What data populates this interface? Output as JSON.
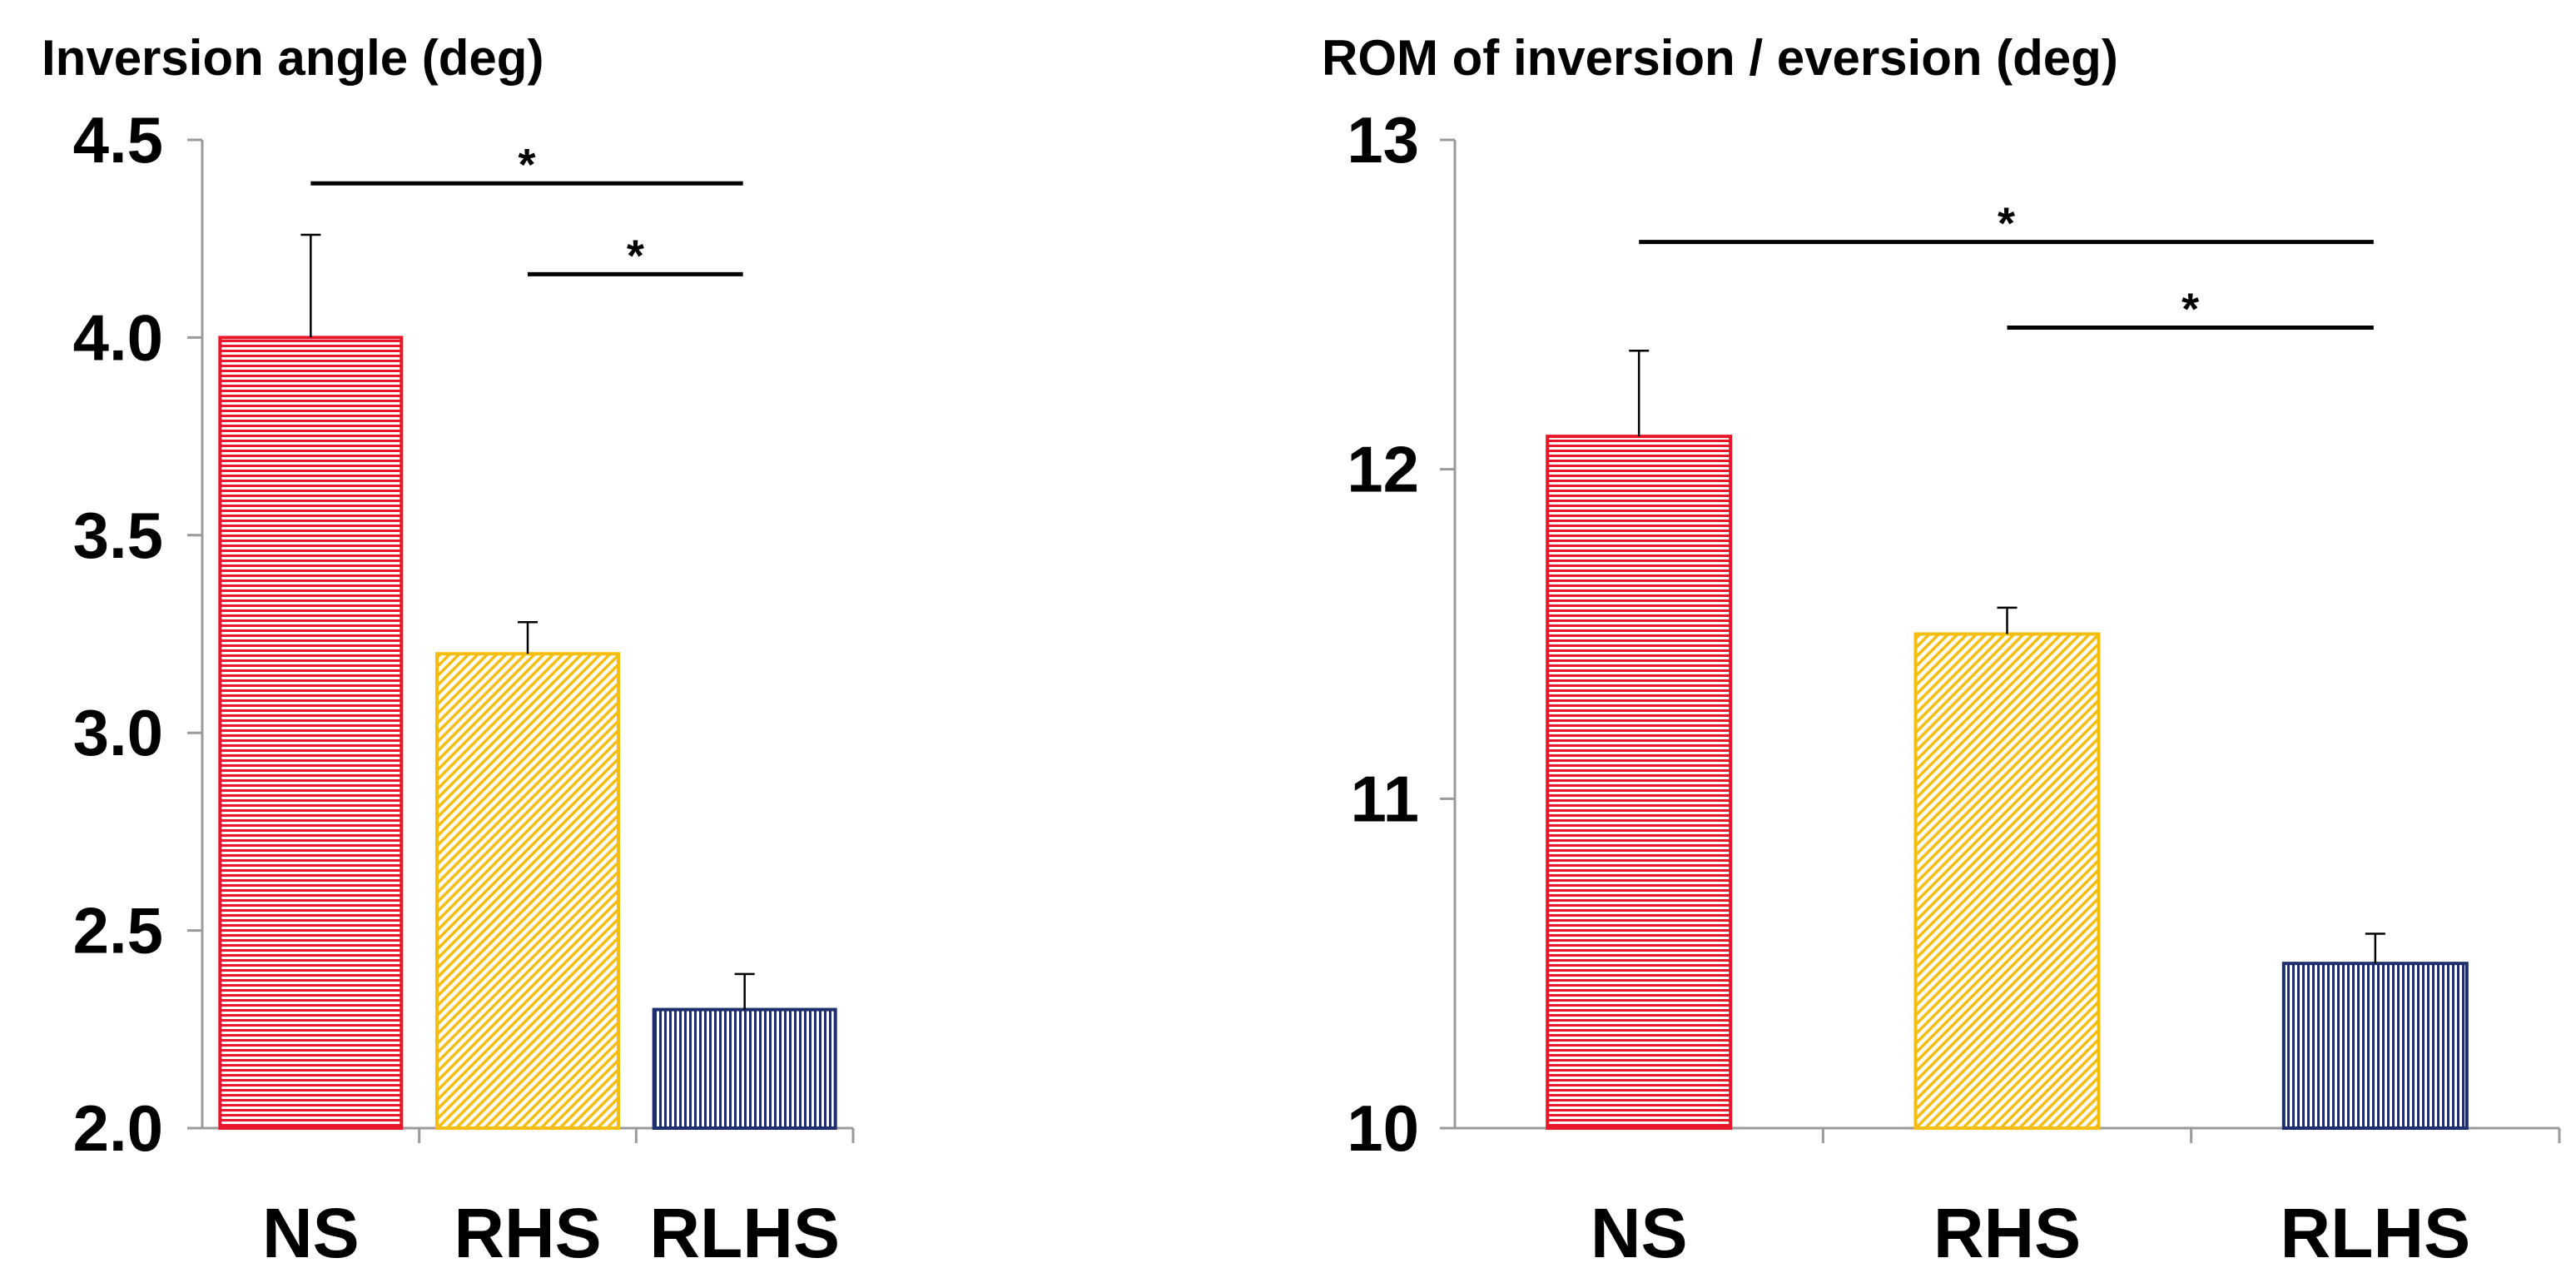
{
  "colors": {
    "NS": "#e8182a",
    "RHS": "#f5be0e",
    "RLHS": "#1f2f6e",
    "axis": "#9a9a9a",
    "line": "#000000"
  },
  "chart_data": [
    {
      "type": "bar",
      "title": "Inversion angle (deg)",
      "categories": [
        "NS",
        "RHS",
        "RLHS"
      ],
      "values": [
        4.0,
        3.2,
        2.3
      ],
      "errors": [
        0.26,
        0.08,
        0.09
      ],
      "ylim": [
        2.0,
        4.5
      ],
      "ticks": [
        "2.0",
        "2.5",
        "3.0",
        "3.5",
        "4.0",
        "4.5"
      ],
      "tick_values": [
        2.0,
        2.5,
        3.0,
        3.5,
        4.0,
        4.5
      ],
      "patterns": [
        "horizontal",
        "diagonal",
        "vertical"
      ],
      "significance": [
        {
          "from": "NS",
          "to": "RLHS",
          "label": "*",
          "level": 4.39
        },
        {
          "from": "RHS",
          "to": "RLHS",
          "label": "*",
          "level": 4.16
        }
      ]
    },
    {
      "type": "bar",
      "title": "ROM of inversion / eversion (deg)",
      "categories": [
        "NS",
        "RHS",
        "RLHS"
      ],
      "values": [
        12.1,
        11.5,
        10.5
      ],
      "errors": [
        0.26,
        0.08,
        0.09
      ],
      "ylim": [
        10,
        13
      ],
      "ticks": [
        "10",
        "11",
        "12",
        "13"
      ],
      "tick_values": [
        10,
        11,
        12,
        13
      ],
      "patterns": [
        "horizontal",
        "diagonal",
        "vertical"
      ],
      "significance": [
        {
          "from": "NS",
          "to": "RLHS",
          "label": "*",
          "level": 12.69
        },
        {
          "from": "RHS",
          "to": "RLHS",
          "label": "*",
          "level": 12.43
        }
      ]
    }
  ]
}
